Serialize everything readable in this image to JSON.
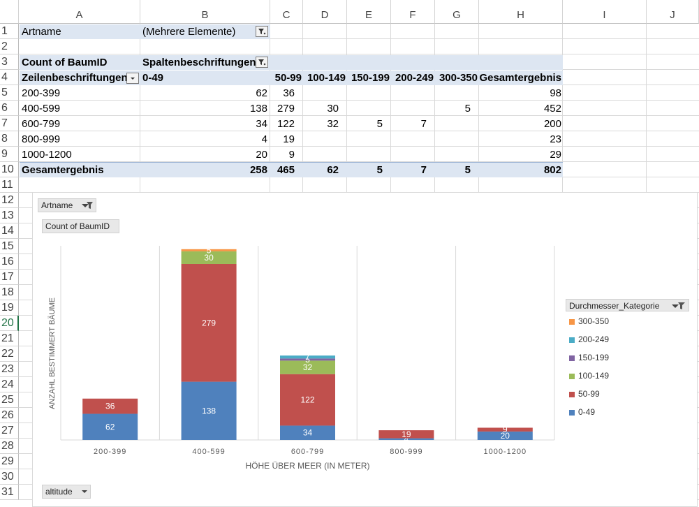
{
  "columns": [
    "A",
    "B",
    "C",
    "D",
    "E",
    "F",
    "G",
    "H",
    "I",
    "J"
  ],
  "rows": [
    "1",
    "2",
    "3",
    "4",
    "5",
    "6",
    "7",
    "8",
    "9",
    "10",
    "11",
    "12",
    "13",
    "14",
    "15",
    "16",
    "17",
    "18",
    "19",
    "20",
    "21",
    "22",
    "23",
    "24",
    "25",
    "26",
    "27",
    "28",
    "29",
    "30",
    "31"
  ],
  "pivot": {
    "filter_label": "Artname",
    "filter_value": "(Mehrere Elemente)",
    "values_label": "Count of BaumID",
    "columns_label": "Spaltenbeschriftungen",
    "rows_label": "Zeilenbeschriftungen",
    "col_categories": [
      "0-49",
      "50-99",
      "100-149",
      "150-199",
      "200-249",
      "300-350",
      "Gesamtergebnis"
    ],
    "data_rows": [
      {
        "label": "200-399",
        "cells": [
          "62",
          "36",
          "",
          "",
          "",
          "",
          "98"
        ]
      },
      {
        "label": "400-599",
        "cells": [
          "138",
          "279",
          "30",
          "",
          "",
          "5",
          "452"
        ]
      },
      {
        "label": "600-799",
        "cells": [
          "34",
          "122",
          "32",
          "5",
          "7",
          "",
          "200"
        ]
      },
      {
        "label": "800-999",
        "cells": [
          "4",
          "19",
          "",
          "",
          "",
          "",
          "23"
        ]
      },
      {
        "label": "1000-1200",
        "cells": [
          "20",
          "9",
          "",
          "",
          "",
          "",
          "29"
        ]
      }
    ],
    "total_row": {
      "label": "Gesamtergebnis",
      "cells": [
        "258",
        "465",
        "62",
        "5",
        "7",
        "5",
        "802"
      ]
    }
  },
  "chart_buttons": {
    "artname": "Artname",
    "count": "Count of BaumID",
    "legend_field": "Durchmesser_Kategorie",
    "axis_field": "altitude"
  },
  "chart_data": {
    "type": "bar",
    "stacked": true,
    "categories": [
      "200-399",
      "400-599",
      "600-799",
      "800-999",
      "1000-1200"
    ],
    "series": [
      {
        "name": "0-49",
        "color": "#4f81bd",
        "values": [
          62,
          138,
          34,
          4,
          20
        ]
      },
      {
        "name": "50-99",
        "color": "#c0504d",
        "values": [
          36,
          279,
          122,
          19,
          9
        ]
      },
      {
        "name": "100-149",
        "color": "#9bbb59",
        "values": [
          0,
          30,
          32,
          0,
          0
        ]
      },
      {
        "name": "150-199",
        "color": "#8064a2",
        "values": [
          0,
          0,
          5,
          0,
          0
        ]
      },
      {
        "name": "200-249",
        "color": "#4bacc6",
        "values": [
          0,
          0,
          7,
          0,
          0
        ]
      },
      {
        "name": "300-350",
        "color": "#f79646",
        "values": [
          0,
          5,
          0,
          0,
          0
        ]
      }
    ],
    "legend_order": [
      "300-350",
      "200-249",
      "150-199",
      "100-149",
      "50-99",
      "0-49"
    ],
    "xlabel": "HÖHE ÜBER MEER (IN METER)",
    "ylabel": "ANZAHL BESTIMMERT BÄUME",
    "ylim": [
      0,
      460
    ],
    "grid": "vertical category separators",
    "legend_position": "right"
  },
  "colors": {
    "pivot_header_fill": "#dde6f2",
    "selected_row_header": "#217346"
  },
  "selected_row": "20"
}
